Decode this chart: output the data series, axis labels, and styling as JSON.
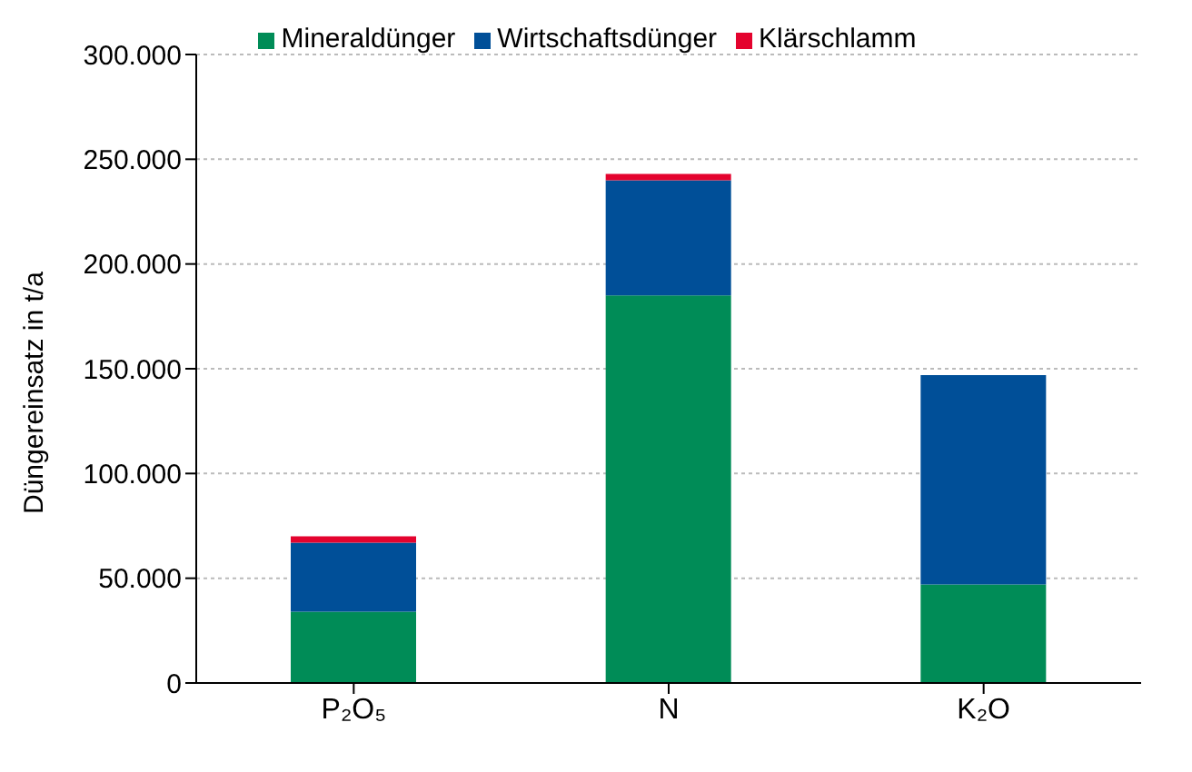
{
  "chart_data": {
    "type": "bar",
    "stacked": true,
    "ylabel": "Düngereinsatz in t/a",
    "categories": [
      "P₂O₅",
      "N",
      "K₂O"
    ],
    "series": [
      {
        "name": "Mineraldünger",
        "color": "#008c57",
        "values": [
          34000,
          185000,
          47000
        ]
      },
      {
        "name": "Wirtschaftsdünger",
        "color": "#004f98",
        "values": [
          33000,
          55000,
          100000
        ]
      },
      {
        "name": "Klärschlamm",
        "color": "#e4032e",
        "values": [
          3000,
          3000,
          null
        ]
      }
    ],
    "ylim": [
      0,
      300000
    ],
    "yticks": [
      {
        "value": 0,
        "label": "0"
      },
      {
        "value": 50000,
        "label": "50.000"
      },
      {
        "value": 100000,
        "label": "100.000"
      },
      {
        "value": 150000,
        "label": "150.000"
      },
      {
        "value": 200000,
        "label": "200.000"
      },
      {
        "value": 250000,
        "label": "250.000"
      },
      {
        "value": 300000,
        "label": "300.000"
      }
    ],
    "grid": "y",
    "legend": "top"
  }
}
